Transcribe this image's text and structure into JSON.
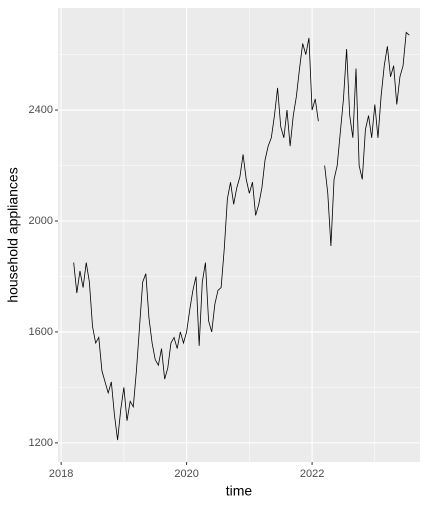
{
  "chart_data": {
    "type": "line",
    "xlabel": "time",
    "ylabel": "household appliances",
    "x": [
      2018.2,
      2018.25,
      2018.3,
      2018.35,
      2018.4,
      2018.45,
      2018.5,
      2018.55,
      2018.6,
      2018.65,
      2018.7,
      2018.75,
      2018.8,
      2018.85,
      2018.9,
      2018.95,
      2019.0,
      2019.05,
      2019.1,
      2019.15,
      2019.2,
      2019.25,
      2019.3,
      2019.35,
      2019.4,
      2019.45,
      2019.5,
      2019.55,
      2019.6,
      2019.65,
      2019.7,
      2019.75,
      2019.8,
      2019.85,
      2019.9,
      2019.95,
      2020.0,
      2020.05,
      2020.1,
      2020.15,
      2020.2,
      2020.25,
      2020.3,
      2020.35,
      2020.4,
      2020.45,
      2020.5,
      2020.55,
      2020.6,
      2020.65,
      2020.7,
      2020.75,
      2020.8,
      2020.85,
      2020.9,
      2020.95,
      2021.0,
      2021.05,
      2021.1,
      2021.15,
      2021.2,
      2021.25,
      2021.3,
      2021.35,
      2021.4,
      2021.45,
      2021.5,
      2021.55,
      2021.6,
      2021.65,
      2021.7,
      2021.75,
      2021.8,
      2021.85,
      2021.9,
      2021.95,
      2022.0,
      2022.05,
      2022.1,
      2022.15,
      2022.2,
      2022.25,
      2022.3,
      2022.35,
      2022.4,
      2022.45,
      2022.5,
      2022.55,
      2022.6,
      2022.65,
      2022.7,
      2022.75,
      2022.8,
      2022.85,
      2022.9,
      2022.95,
      2023.0,
      2023.05,
      2023.1,
      2023.15,
      2023.2,
      2023.25,
      2023.3,
      2023.35,
      2023.4,
      2023.45,
      2023.5,
      2023.55
    ],
    "series": [
      {
        "color": "#000000",
        "values": [
          1850,
          1740,
          1820,
          1760,
          1850,
          1780,
          1620,
          1560,
          1580,
          1460,
          1420,
          1380,
          1420,
          1300,
          1210,
          1320,
          1400,
          1280,
          1350,
          1330,
          1460,
          1620,
          1780,
          1810,
          1650,
          1560,
          1500,
          1480,
          1540,
          1430,
          1470,
          1560,
          1580,
          1540,
          1600,
          1560,
          1600,
          1680,
          1750,
          1800,
          1550,
          1780,
          1850,
          1640,
          1600,
          1700,
          1750,
          1760,
          1900,
          2080,
          2140,
          2060,
          2120,
          2160,
          2240,
          2150,
          2100,
          2140,
          2020,
          2060,
          2120,
          2220,
          2270,
          2300,
          2380,
          2480,
          2340,
          2300,
          2400,
          2270,
          2380,
          2450,
          2550,
          2640,
          2600,
          2660,
          2400,
          2440,
          2360,
          null,
          2200,
          2100,
          1910,
          2150,
          2200,
          2320,
          2440,
          2620,
          2380,
          2300,
          2550,
          2200,
          2150,
          2330,
          2380,
          2300,
          2420,
          2300,
          2450,
          2560,
          2630,
          2520,
          2560,
          2420,
          2520,
          2560,
          2680,
          2670
        ]
      }
    ],
    "xlim": [
      2017.95,
      2023.72
    ],
    "xticks": [
      2018,
      2020,
      2022
    ],
    "x_minor_ticks": [
      2019,
      2021,
      2023
    ],
    "ylim": [
      1131,
      2768
    ],
    "yticks": [
      1200,
      1600,
      2000,
      2400
    ],
    "y_minor_ticks": [
      1400,
      1800,
      2200,
      2600
    ],
    "grid": true
  }
}
